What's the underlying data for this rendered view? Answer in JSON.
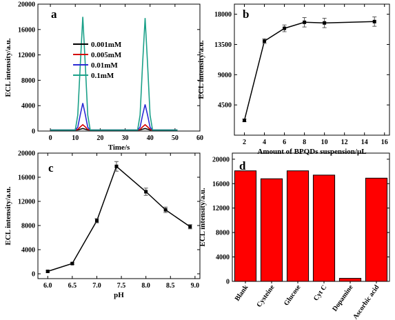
{
  "chart_data": [
    {
      "panel_label": "a",
      "type": "line",
      "xlabel": "Time/s",
      "ylabel": "ECL intensity/a.u.",
      "xlim": [
        -5,
        60
      ],
      "ylim": [
        0,
        20000
      ],
      "xticks": [
        0,
        10,
        20,
        30,
        40,
        50,
        60
      ],
      "yticks": [
        0,
        4000,
        8000,
        12000,
        16000,
        20000
      ],
      "legend_position": "center-right",
      "series": [
        {
          "name": "0.001mM",
          "color": "#000000",
          "x": [
            0,
            10,
            11,
            12,
            13,
            14,
            15,
            16,
            35,
            36,
            37,
            38,
            39,
            40,
            41,
            51
          ],
          "y": [
            150,
            150,
            180,
            280,
            400,
            280,
            180,
            150,
            150,
            180,
            280,
            400,
            280,
            180,
            150,
            150
          ]
        },
        {
          "name": "0.005mM",
          "color": "#d40000",
          "x": [
            0,
            10,
            11,
            12,
            13,
            14,
            15,
            16,
            35,
            36,
            37,
            38,
            39,
            40,
            41,
            51
          ],
          "y": [
            150,
            150,
            250,
            650,
            1000,
            650,
            250,
            150,
            150,
            250,
            650,
            1000,
            650,
            250,
            150,
            150
          ]
        },
        {
          "name": "0.01mM",
          "color": "#2a2ad4",
          "x": [
            0,
            10,
            11,
            12,
            13,
            14,
            15,
            16,
            35,
            36,
            37,
            38,
            39,
            40,
            41,
            51
          ],
          "y": [
            150,
            150,
            600,
            2600,
            4400,
            2600,
            600,
            150,
            150,
            600,
            2500,
            4200,
            2500,
            600,
            150,
            150
          ]
        },
        {
          "name": "0.1mM",
          "color": "#1aa088",
          "x": [
            0,
            10,
            11,
            12,
            13,
            14,
            15,
            16,
            35,
            36,
            37,
            38,
            39,
            40,
            41,
            51
          ],
          "y": [
            150,
            150,
            2500,
            10500,
            18000,
            10500,
            2500,
            150,
            150,
            2500,
            10500,
            17800,
            10500,
            2500,
            150,
            150
          ]
        }
      ]
    },
    {
      "panel_label": "b",
      "type": "line",
      "xlabel": "Amount of BPQDs suspension/μL",
      "ylabel": "ECL intensity/a.u.",
      "xlim": [
        1,
        16.5
      ],
      "ylim": [
        0,
        19500
      ],
      "xticks": [
        2,
        4,
        6,
        8,
        10,
        12,
        14,
        16
      ],
      "yticks": [
        4500,
        9000,
        13500,
        18000
      ],
      "series": [
        {
          "x": [
            2,
            4,
            6,
            8,
            10,
            15
          ],
          "y": [
            2200,
            14000,
            15900,
            16800,
            16700,
            16900
          ],
          "err": [
            200,
            350,
            500,
            700,
            700,
            700
          ]
        }
      ]
    },
    {
      "panel_label": "c",
      "type": "line",
      "xlabel": "pH",
      "ylabel": "ECL intensity/a.u.",
      "xlim": [
        5.8,
        9.1
      ],
      "ylim": [
        -800,
        20000
      ],
      "xticks": [
        6.0,
        6.5,
        7.0,
        7.5,
        8.0,
        8.5,
        9.0
      ],
      "yticks": [
        0,
        4000,
        8000,
        12000,
        16000,
        20000
      ],
      "series": [
        {
          "x": [
            6.0,
            6.5,
            7.0,
            7.4,
            8.0,
            8.4,
            8.9
          ],
          "y": [
            400,
            1700,
            8800,
            17800,
            13600,
            10600,
            7800
          ],
          "err": [
            150,
            150,
            350,
            800,
            600,
            450,
            350
          ]
        }
      ]
    },
    {
      "panel_label": "d",
      "type": "bar",
      "ylabel": "ECL intensity/a.u.",
      "ylim": [
        0,
        21000
      ],
      "yticks": [
        0,
        4000,
        8000,
        12000,
        16000,
        20000
      ],
      "categories": [
        "Blank",
        "Cysteine",
        "Glucose",
        "Cyt C",
        "Dopamine",
        "Ascorbic acid"
      ],
      "values": [
        18100,
        16800,
        18100,
        17400,
        500,
        16900
      ],
      "color": "#ff0000"
    }
  ]
}
